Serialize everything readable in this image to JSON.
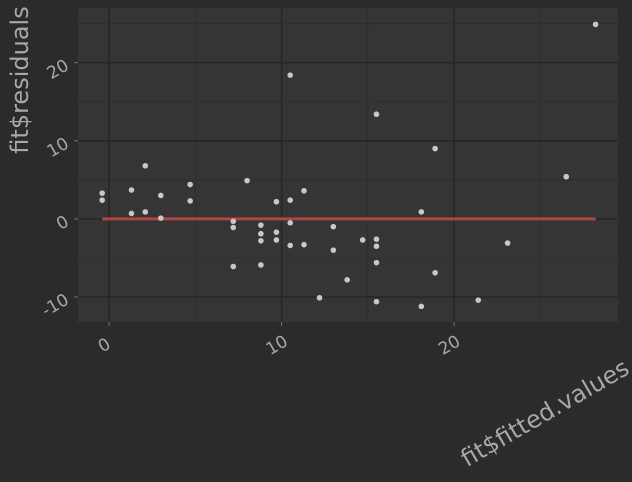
{
  "chart_data": {
    "type": "scatter",
    "title": "",
    "xlabel": "fit$fitted.values",
    "ylabel": "fit$residuals",
    "xlim": [
      -1.8,
      29.5
    ],
    "ylim": [
      -13.2,
      27.0
    ],
    "x_ticks": [
      0,
      10,
      20
    ],
    "x_tick_labels": [
      "0",
      "10",
      "20"
    ],
    "y_ticks": [
      -10,
      0,
      10,
      20
    ],
    "y_tick_labels": [
      "-10",
      "0",
      "10",
      "20"
    ],
    "grid": true,
    "legend": "none",
    "colors": {
      "background": "#2b2b2b",
      "panel": "#353535",
      "grid_major": "#262626",
      "grid_minor": "#2e2e2e",
      "points": "#c8c8c8",
      "fit_line": "#b04545",
      "text": "#a8a8a8"
    },
    "series": [
      {
        "points": [
          [
            -0.4,
            3.3
          ],
          [
            -0.4,
            2.4
          ],
          [
            1.3,
            3.7
          ],
          [
            1.3,
            0.7
          ],
          [
            2.1,
            6.8
          ],
          [
            2.1,
            0.9
          ],
          [
            3.0,
            3.0
          ],
          [
            3.0,
            0.1
          ],
          [
            4.7,
            4.4
          ],
          [
            4.7,
            2.3
          ],
          [
            7.2,
            -0.3
          ],
          [
            7.2,
            -1.1
          ],
          [
            7.2,
            -6.1
          ],
          [
            8.0,
            4.9
          ],
          [
            8.8,
            -0.8
          ],
          [
            8.8,
            -1.9
          ],
          [
            8.8,
            -2.8
          ],
          [
            8.8,
            -5.9
          ],
          [
            9.7,
            2.2
          ],
          [
            9.7,
            -1.7
          ],
          [
            9.7,
            -2.7
          ],
          [
            10.5,
            18.4
          ],
          [
            10.5,
            2.4
          ],
          [
            10.5,
            -0.5
          ],
          [
            10.5,
            -3.4
          ],
          [
            11.3,
            3.6
          ],
          [
            11.3,
            -3.3
          ],
          [
            12.2,
            -10.1
          ],
          [
            13.0,
            -1.0
          ],
          [
            13.0,
            -4.0
          ],
          [
            13.8,
            -7.8
          ],
          [
            14.7,
            -2.7
          ],
          [
            15.5,
            13.4
          ],
          [
            15.5,
            -2.6
          ],
          [
            15.5,
            -3.5
          ],
          [
            15.5,
            -5.6
          ],
          [
            15.5,
            -10.6
          ],
          [
            18.1,
            0.9
          ],
          [
            18.1,
            -11.2
          ],
          [
            18.9,
            9.0
          ],
          [
            18.9,
            -6.9
          ],
          [
            21.4,
            -10.4
          ],
          [
            23.1,
            -3.1
          ],
          [
            26.5,
            5.4
          ],
          [
            28.2,
            24.9
          ]
        ]
      }
    ],
    "fit_line": {
      "type": "hline",
      "y": 0,
      "x_range": [
        -0.4,
        28.2
      ]
    }
  }
}
